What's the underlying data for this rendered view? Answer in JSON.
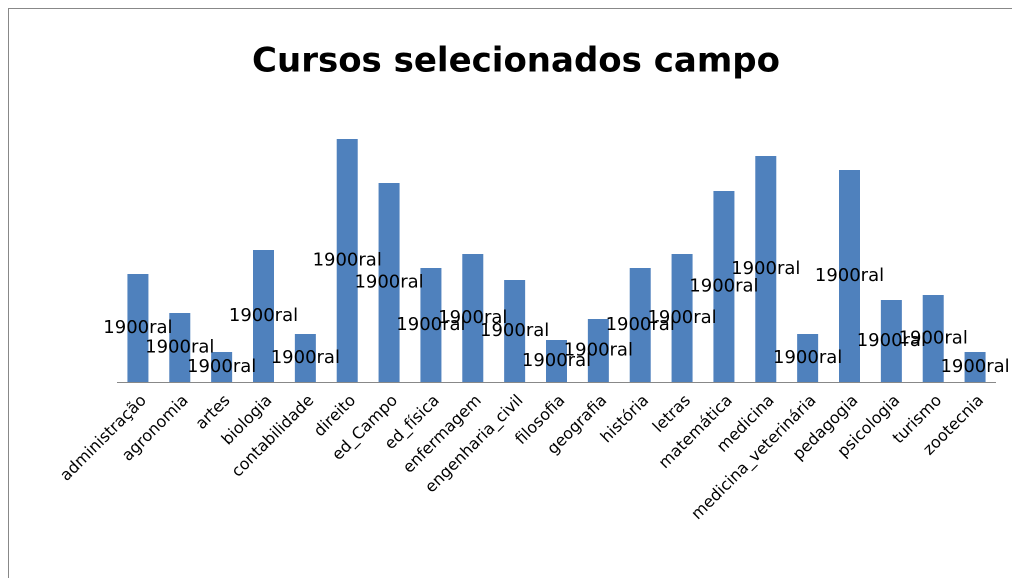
{
  "chart_data": {
    "type": "bar",
    "title": "Cursos selecionados campo",
    "categories": [
      "administração",
      "agronomia",
      "artes",
      "biologia",
      "contabilidade",
      "direito",
      "ed_Campo",
      "ed_física",
      "enfermagem",
      "engenharia_civil",
      "filosofia",
      "geografia",
      "história",
      "letras",
      "matemática",
      "medicina",
      "medicina_veterinária",
      "pedagogia",
      "psicologia",
      "turismo",
      "zootecnia"
    ],
    "values": [
      108,
      69,
      30,
      132,
      48,
      243,
      199,
      114,
      128,
      102,
      42,
      63,
      114,
      128,
      191,
      226,
      48,
      212,
      82,
      87,
      30
    ],
    "value_labels": [
      "1900ral",
      "1900ral",
      "1900ral",
      "1900ral",
      "1900ral",
      "1900ral",
      "1900ral",
      "1900ral",
      "1900ral",
      "1900ral",
      "1900ral",
      "1900ral",
      "1900ral",
      "1900ral",
      "1900ral",
      "1900ral",
      "1900ral",
      "1900ral",
      "1900ral",
      "1900ral",
      "1900ral"
    ],
    "color": "#4f81bd"
  }
}
